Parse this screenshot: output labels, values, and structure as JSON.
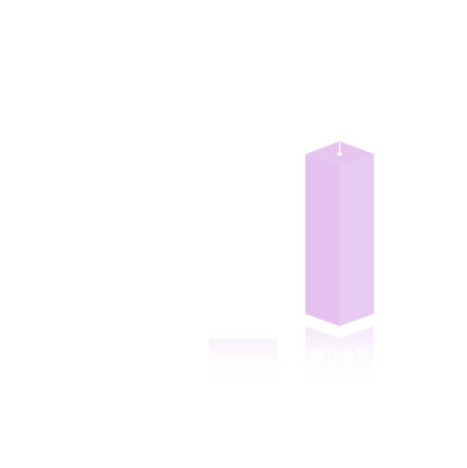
{
  "badge": {
    "text": "香りあり"
  }
}
